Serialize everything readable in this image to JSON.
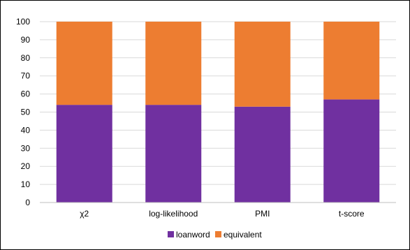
{
  "chart_data": {
    "type": "bar",
    "stacked": true,
    "categories": [
      "χ2",
      "log-likelihood",
      "PMI",
      "t-score"
    ],
    "series": [
      {
        "name": "loanword",
        "values": [
          54,
          54,
          53,
          57
        ],
        "color": "#7030A0"
      },
      {
        "name": "equivalent",
        "values": [
          46,
          46,
          47,
          43
        ],
        "color": "#ED7D31"
      }
    ],
    "title": "",
    "xlabel": "",
    "ylabel": "",
    "ylim": [
      0,
      100
    ],
    "yticks": [
      0,
      10,
      20,
      30,
      40,
      50,
      60,
      70,
      80,
      90,
      100
    ],
    "grid": true,
    "gridline_color": "#d9d9d9",
    "legend_position": "bottom"
  }
}
